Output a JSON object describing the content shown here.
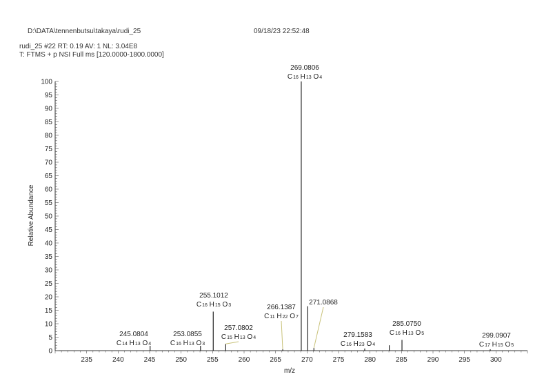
{
  "header": {
    "file_path": "D:\\DATA\\tennenbutsu\\takaya\\rudi_25",
    "datetime": "09/18/23 22:52:48",
    "scan_info": "rudi_25 #22  RT: 0.19  AV: 1  NL: 3.04E8",
    "scan_filter": "T: FTMS + p NSI Full ms [120.0000-1800.0000]"
  },
  "chart_data": {
    "type": "bar",
    "xlabel": "m/z",
    "ylabel": "Relative Abundance",
    "xlim": [
      230,
      305
    ],
    "ylim": [
      0,
      100
    ],
    "xticks": [
      235,
      240,
      245,
      250,
      255,
      260,
      265,
      270,
      275,
      280,
      285,
      290,
      295,
      300
    ],
    "yticks": [
      0,
      5,
      10,
      15,
      20,
      25,
      30,
      35,
      40,
      45,
      50,
      55,
      60,
      65,
      70,
      75,
      80,
      85,
      90,
      95,
      100
    ],
    "peaks": [
      {
        "mz": 245.0804,
        "intensity": 1.8,
        "mz_label": "245.0804",
        "formula": [
          "C",
          "14",
          "H",
          "13",
          "O",
          "4"
        ]
      },
      {
        "mz": 253.0855,
        "intensity": 1.8,
        "mz_label": "253.0855",
        "formula": [
          "C",
          "16",
          "H",
          "13",
          "O",
          "3"
        ]
      },
      {
        "mz": 255.1012,
        "intensity": 14.5,
        "mz_label": "255.1012",
        "formula": [
          "C",
          "16",
          "H",
          "15",
          "O",
          "3"
        ]
      },
      {
        "mz": 257.0802,
        "intensity": 2.5,
        "mz_label": "257.0802",
        "formula": [
          "C",
          "15",
          "H",
          "13",
          "O",
          "4"
        ]
      },
      {
        "mz": 266.1387,
        "intensity": 0.5,
        "mz_label": "266.1387",
        "formula": [
          "C",
          "11",
          "H",
          "22",
          "O",
          "7"
        ]
      },
      {
        "mz": 269.0806,
        "intensity": 100,
        "mz_label": "269.0806",
        "formula": [
          "C",
          "16",
          "H",
          "13",
          "O",
          "4"
        ]
      },
      {
        "mz": 270.084,
        "intensity": 16.5,
        "mz_label": "",
        "formula": []
      },
      {
        "mz": 271.0868,
        "intensity": 1.0,
        "mz_label": "271.0868",
        "formula": []
      },
      {
        "mz": 279.1583,
        "intensity": 0.8,
        "mz_label": "279.1583",
        "formula": [
          "C",
          "16",
          "H",
          "23",
          "O",
          "4"
        ]
      },
      {
        "mz": 283.06,
        "intensity": 2.0,
        "mz_label": "",
        "formula": []
      },
      {
        "mz": 285.075,
        "intensity": 4.0,
        "mz_label": "285.0750",
        "formula": [
          "C",
          "16",
          "H",
          "13",
          "O",
          "5"
        ]
      },
      {
        "mz": 299.0907,
        "intensity": 0.5,
        "mz_label": "299.0907",
        "formula": [
          "C",
          "17",
          "H",
          "15",
          "O",
          "5"
        ]
      }
    ]
  }
}
